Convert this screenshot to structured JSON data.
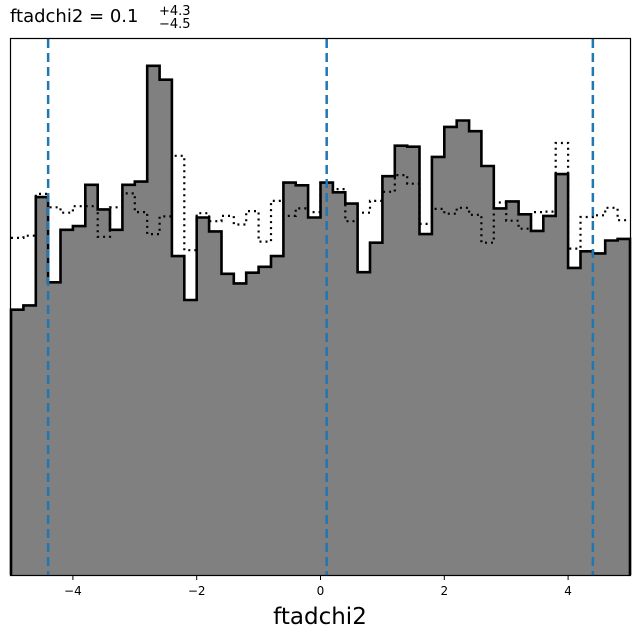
{
  "chart_data": {
    "type": "histogram",
    "title": {
      "prefix": "ftadchi2 = ",
      "value": "0.1",
      "upper": "+4.3",
      "lower": "−4.5"
    },
    "xlabel": "ftadchi2",
    "ylabel": "",
    "xlim": [
      -5.0,
      5.0
    ],
    "ylim": [
      0,
      1.0
    ],
    "grid": false,
    "x_ticks": [
      -4,
      -2,
      0,
      2,
      4
    ],
    "x_tick_labels": [
      "−4",
      "−2",
      "0",
      "2",
      "4"
    ],
    "bins": {
      "start": -5.0,
      "width": 0.2,
      "count": 50
    },
    "series": [
      {
        "style": "filled-step",
        "fill": "#808080",
        "edge": "#000000",
        "values": [
          0.495,
          0.503,
          0.705,
          0.546,
          0.644,
          0.651,
          0.728,
          0.682,
          0.644,
          0.728,
          0.734,
          0.95,
          0.924,
          0.595,
          0.513,
          0.667,
          0.641,
          0.562,
          0.544,
          0.564,
          0.575,
          0.595,
          0.732,
          0.727,
          0.667,
          0.732,
          0.714,
          0.693,
          0.565,
          0.62,
          0.744,
          0.801,
          0.799,
          0.636,
          0.78,
          0.836,
          0.848,
          0.828,
          0.763,
          0.684,
          0.697,
          0.673,
          0.642,
          0.67,
          0.748,
          0.573,
          0.604,
          0.6,
          0.624,
          0.627
        ]
      },
      {
        "style": "dotted-step",
        "edge": "#000000",
        "values": [
          0.629,
          0.633,
          0.711,
          0.686,
          0.676,
          0.688,
          0.688,
          0.631,
          0.686,
          0.712,
          0.677,
          0.636,
          0.669,
          0.782,
          0.606,
          0.675,
          0.66,
          0.67,
          0.654,
          0.679,
          0.622,
          0.698,
          0.67,
          0.684,
          0.677,
          0.732,
          0.72,
          0.66,
          0.676,
          0.698,
          0.715,
          0.746,
          0.73,
          0.655,
          0.683,
          0.674,
          0.685,
          0.672,
          0.62,
          0.695,
          0.661,
          0.646,
          0.677,
          0.678,
          0.806,
          0.609,
          0.668,
          0.671,
          0.685,
          0.662
        ]
      }
    ],
    "quantile_lines": {
      "color": "#1f77b4",
      "style": "dashed",
      "x": [
        -4.4,
        0.1,
        4.4
      ]
    }
  }
}
